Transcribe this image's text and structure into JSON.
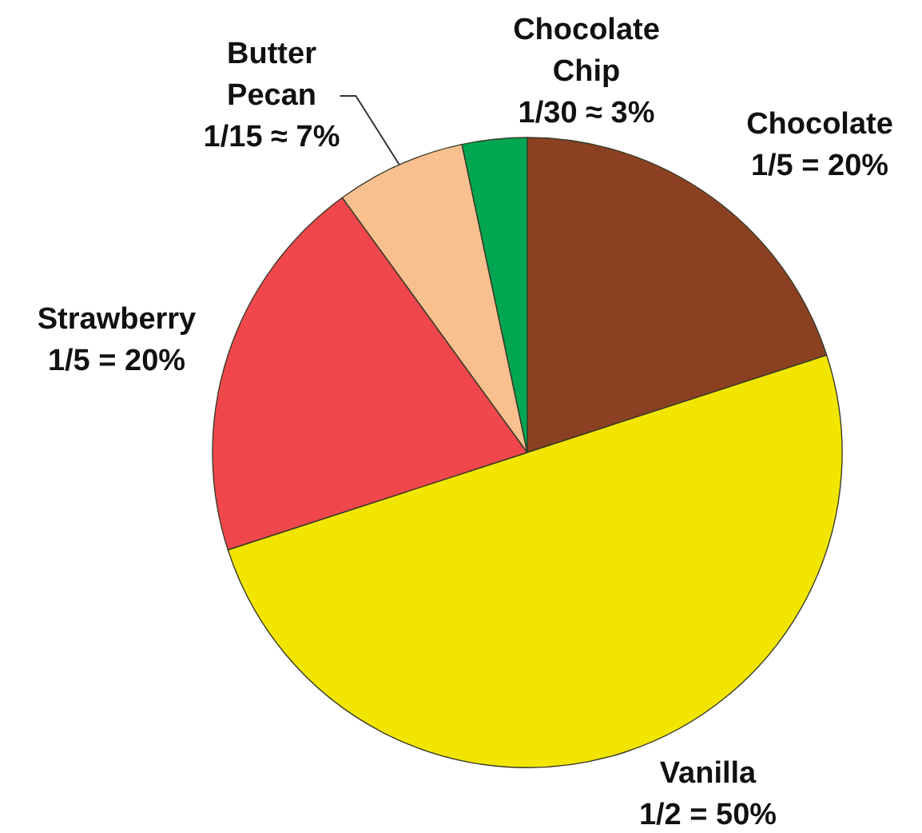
{
  "chart_data": {
    "type": "pie",
    "categories": [
      "Chocolate",
      "Vanilla",
      "Strawberry",
      "Butter Pecan",
      "Chocolate Chip"
    ],
    "values": [
      20,
      50,
      20,
      6.67,
      3.33
    ],
    "value_labels": [
      "1/5 = 20%",
      "1/2 = 50%",
      "1/5 = 20%",
      "1/15 ≈ 7%",
      "1/30 ≈ 3%"
    ],
    "colors": [
      "#8b4121",
      "#f2e600",
      "#ef474b",
      "#f9c08f",
      "#00a650"
    ],
    "legend": false
  }
}
